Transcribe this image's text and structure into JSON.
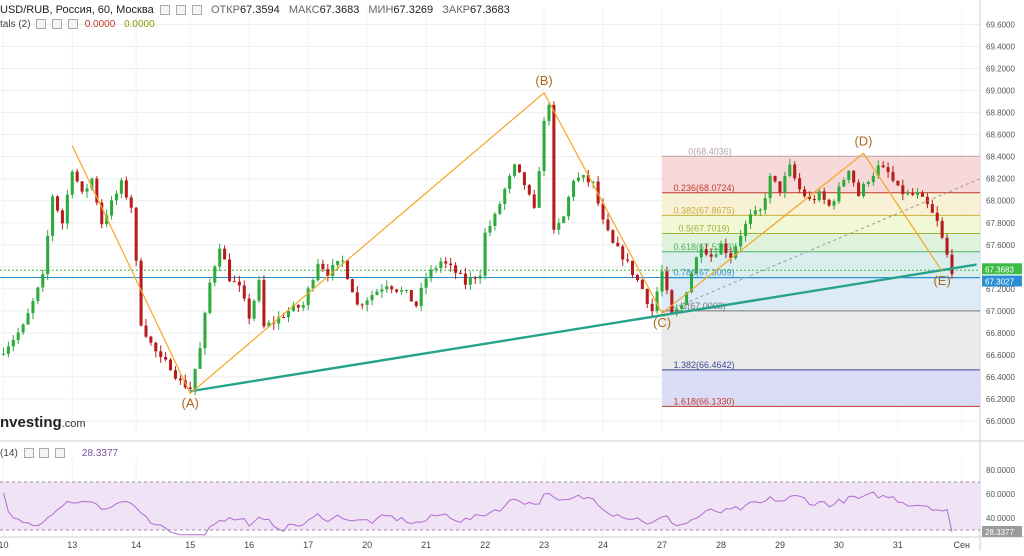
{
  "header": {
    "symbol": "USD/RUB, Россия, 60, Москва",
    "open_label": "ОТКР",
    "open": "67.3594",
    "high_label": "МАКС",
    "high": "67.3683",
    "low_label": "МИН",
    "low": "67.3269",
    "close_label": "ЗАКР",
    "close": "67.3683"
  },
  "indicator_row": {
    "name": "tals (2)",
    "v1": "0.0000",
    "v2": "0.0000"
  },
  "logo": {
    "text": "nvesting",
    "suffix": ".com"
  },
  "rsi": {
    "label": "(14)",
    "value": "28.3377",
    "badge": "28.3377",
    "levels": [
      30,
      70
    ]
  },
  "colors": {
    "bull": "#2eaa3c",
    "bear": "#b71c1c",
    "pattern": "#f5a623",
    "trend": "#26a38a",
    "rsi": "#b26bd0",
    "rsi_band": "#efe3f5",
    "fib_line_red": "#c0392b",
    "fib_line_blue": "#3b4a9a"
  },
  "chart_data": {
    "type": "candlestick",
    "title": "USD/RUB, Россия, 60, Москва",
    "ylim": [
      65.9,
      69.75
    ],
    "y_ticks": [
      "69.6000",
      "69.4000",
      "69.2000",
      "69.0000",
      "68.8000",
      "68.6000",
      "68.4000",
      "68.2000",
      "68.0000",
      "67.8000",
      "67.6000",
      "67.4000",
      "67.2000",
      "67.0000",
      "66.8000",
      "66.6000",
      "66.4000",
      "66.2000",
      "66.0000"
    ],
    "x_ticks": [
      {
        "label": "10",
        "i": 0
      },
      {
        "label": "13",
        "i": 14
      },
      {
        "label": "14",
        "i": 27
      },
      {
        "label": "15",
        "i": 38
      },
      {
        "label": "16",
        "i": 50
      },
      {
        "label": "17",
        "i": 62
      },
      {
        "label": "20",
        "i": 74
      },
      {
        "label": "21",
        "i": 86
      },
      {
        "label": "22",
        "i": 98
      },
      {
        "label": "23",
        "i": 110
      },
      {
        "label": "24",
        "i": 122
      },
      {
        "label": "27",
        "i": 134
      },
      {
        "label": "28",
        "i": 146
      },
      {
        "label": "29",
        "i": 158
      },
      {
        "label": "30",
        "i": 170
      },
      {
        "label": "31",
        "i": 182
      },
      {
        "label": "Сен",
        "i": 195
      }
    ],
    "candle_count": 198,
    "anchors": [
      [
        0,
        66.65
      ],
      [
        4,
        66.85
      ],
      [
        8,
        67.3
      ],
      [
        10,
        68.05
      ],
      [
        12,
        67.8
      ],
      [
        14,
        68.3
      ],
      [
        16,
        68.05
      ],
      [
        18,
        68.2
      ],
      [
        20,
        67.8
      ],
      [
        24,
        68.15
      ],
      [
        26,
        67.95
      ],
      [
        28,
        66.9
      ],
      [
        30,
        66.7
      ],
      [
        32,
        66.55
      ],
      [
        34,
        66.5
      ],
      [
        36,
        66.35
      ],
      [
        38,
        66.3
      ],
      [
        40,
        66.65
      ],
      [
        42,
        67.25
      ],
      [
        44,
        67.6
      ],
      [
        46,
        67.3
      ],
      [
        48,
        67.2
      ],
      [
        50,
        66.95
      ],
      [
        52,
        67.25
      ],
      [
        53,
        66.85
      ],
      [
        55,
        66.9
      ],
      [
        58,
        67.0
      ],
      [
        61,
        67.05
      ],
      [
        64,
        67.45
      ],
      [
        66,
        67.35
      ],
      [
        69,
        67.45
      ],
      [
        71,
        67.2
      ],
      [
        72,
        67.05
      ],
      [
        75,
        67.15
      ],
      [
        78,
        67.25
      ],
      [
        82,
        67.15
      ],
      [
        84,
        67.05
      ],
      [
        86,
        67.3
      ],
      [
        89,
        67.45
      ],
      [
        92,
        67.35
      ],
      [
        94,
        67.25
      ],
      [
        97,
        67.35
      ],
      [
        98,
        67.7
      ],
      [
        100,
        67.85
      ],
      [
        102,
        68.1
      ],
      [
        104,
        68.3
      ],
      [
        106,
        68.15
      ],
      [
        108,
        67.9
      ],
      [
        110,
        68.7
      ],
      [
        111,
        68.9
      ],
      [
        112,
        67.7
      ],
      [
        114,
        67.85
      ],
      [
        116,
        68.2
      ],
      [
        118,
        68.2
      ],
      [
        120,
        68.15
      ],
      [
        122,
        67.8
      ],
      [
        124,
        67.6
      ],
      [
        126,
        67.5
      ],
      [
        128,
        67.35
      ],
      [
        130,
        67.2
      ],
      [
        132,
        67.0
      ],
      [
        134,
        67.35
      ],
      [
        136,
        66.95
      ],
      [
        138,
        67.05
      ],
      [
        140,
        67.35
      ],
      [
        142,
        67.6
      ],
      [
        144,
        67.5
      ],
      [
        146,
        67.6
      ],
      [
        148,
        67.5
      ],
      [
        150,
        67.7
      ],
      [
        152,
        67.85
      ],
      [
        154,
        67.9
      ],
      [
        156,
        68.2
      ],
      [
        158,
        68.1
      ],
      [
        160,
        68.3
      ],
      [
        162,
        68.1
      ],
      [
        164,
        68.0
      ],
      [
        166,
        68.05
      ],
      [
        168,
        67.95
      ],
      [
        170,
        68.1
      ],
      [
        172,
        68.3
      ],
      [
        174,
        68.05
      ],
      [
        176,
        68.2
      ],
      [
        178,
        68.3
      ],
      [
        180,
        68.25
      ],
      [
        182,
        68.1
      ],
      [
        184,
        68.05
      ],
      [
        186,
        68.05
      ],
      [
        188,
        67.95
      ],
      [
        190,
        67.8
      ],
      [
        192,
        67.5
      ],
      [
        193,
        67.37
      ]
    ],
    "pattern": {
      "labels": [
        "(A)",
        "(B)",
        "(C)",
        "(D)",
        "(E)"
      ],
      "points": [
        [
          38,
          66.25
        ],
        [
          110,
          68.98
        ],
        [
          134,
          66.98
        ],
        [
          175,
          68.43
        ],
        [
          191,
          67.36
        ]
      ],
      "extra_leg": [
        [
          14,
          68.5
        ],
        [
          38,
          66.25
        ]
      ]
    },
    "trend_line": [
      [
        38,
        66.27
      ],
      [
        198,
        67.42
      ]
    ],
    "fibonacci": {
      "x_start_i": 134,
      "levels": [
        {
          "ratio": "0",
          "price": 68.4036,
          "label": "0(68.4036)"
        },
        {
          "ratio": "0.236",
          "price": 68.0724,
          "label": "0.236(68.0724)"
        },
        {
          "ratio": "0.382",
          "price": 67.8675,
          "label": "0.382(67.8675)"
        },
        {
          "ratio": "0.5",
          "price": 67.7019,
          "label": "0.5(67.7019)"
        },
        {
          "ratio": "0.618",
          "price": 67.5363,
          "label": "0.618(67.5363)"
        },
        {
          "ratio": "0.786",
          "price": 67.3009,
          "label": "0.786(67.3009)"
        },
        {
          "ratio": "1",
          "price": 67.0003,
          "label": "1(67.0003)"
        },
        {
          "ratio": "1.382",
          "price": 66.4642,
          "label": "1.382(66.4642)"
        },
        {
          "ratio": "1.618",
          "price": 66.133,
          "label": "1.618(66.1330)"
        }
      ]
    },
    "last_price": {
      "label": "67.3683",
      "price": 67.3683
    },
    "ref_price": {
      "label": "67.3027",
      "price": 67.3027
    },
    "rsi_ticks": [
      "80.0000",
      "60.0000",
      "40.0000"
    ],
    "rsi_ylim": [
      25,
      90
    ]
  }
}
